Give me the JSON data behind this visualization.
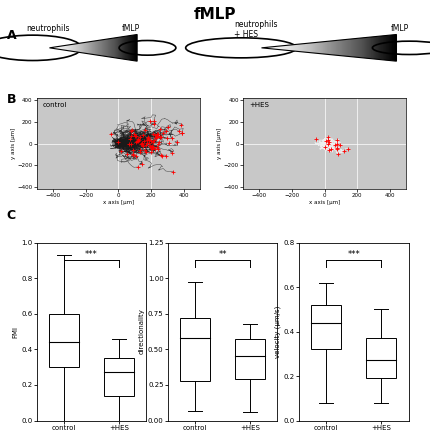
{
  "title": "fMLP",
  "title_fontsize": 11,
  "title_fontweight": "bold",
  "panel_C": {
    "FMI": {
      "ylabel": "FMI",
      "ylim": [
        0.0,
        1.0
      ],
      "yticks": [
        0.0,
        0.2,
        0.4,
        0.6,
        0.8,
        1.0
      ],
      "control": {
        "whislo": 0.0,
        "q1": 0.3,
        "med": 0.44,
        "q3": 0.6,
        "whishi": 0.93
      },
      "HES": {
        "whislo": 0.0,
        "q1": 0.14,
        "med": 0.27,
        "q3": 0.35,
        "whishi": 0.46
      },
      "sig": "***"
    },
    "directionality": {
      "ylabel": "directionality",
      "ylim": [
        0.0,
        1.25
      ],
      "yticks": [
        0.0,
        0.25,
        0.5,
        0.75,
        1.0,
        1.25
      ],
      "control": {
        "whislo": 0.07,
        "q1": 0.28,
        "med": 0.58,
        "q3": 0.72,
        "whishi": 0.97
      },
      "HES": {
        "whislo": 0.06,
        "q1": 0.29,
        "med": 0.45,
        "q3": 0.57,
        "whishi": 0.68
      },
      "sig": "**"
    },
    "velocity": {
      "ylabel": "velocity (µm/s)",
      "ylim": [
        0.0,
        0.8
      ],
      "yticks": [
        0.0,
        0.2,
        0.4,
        0.6,
        0.8
      ],
      "control": {
        "whislo": 0.08,
        "q1": 0.32,
        "med": 0.44,
        "q3": 0.52,
        "whishi": 0.62
      },
      "HES": {
        "whislo": 0.08,
        "q1": 0.19,
        "med": 0.27,
        "q3": 0.37,
        "whishi": 0.5
      },
      "sig": "***"
    }
  },
  "bg_color": "#c8c8c8",
  "track_color_control": "#1a1a1a",
  "track_color_HES": "#f0f0f0",
  "endpoint_color": "red"
}
